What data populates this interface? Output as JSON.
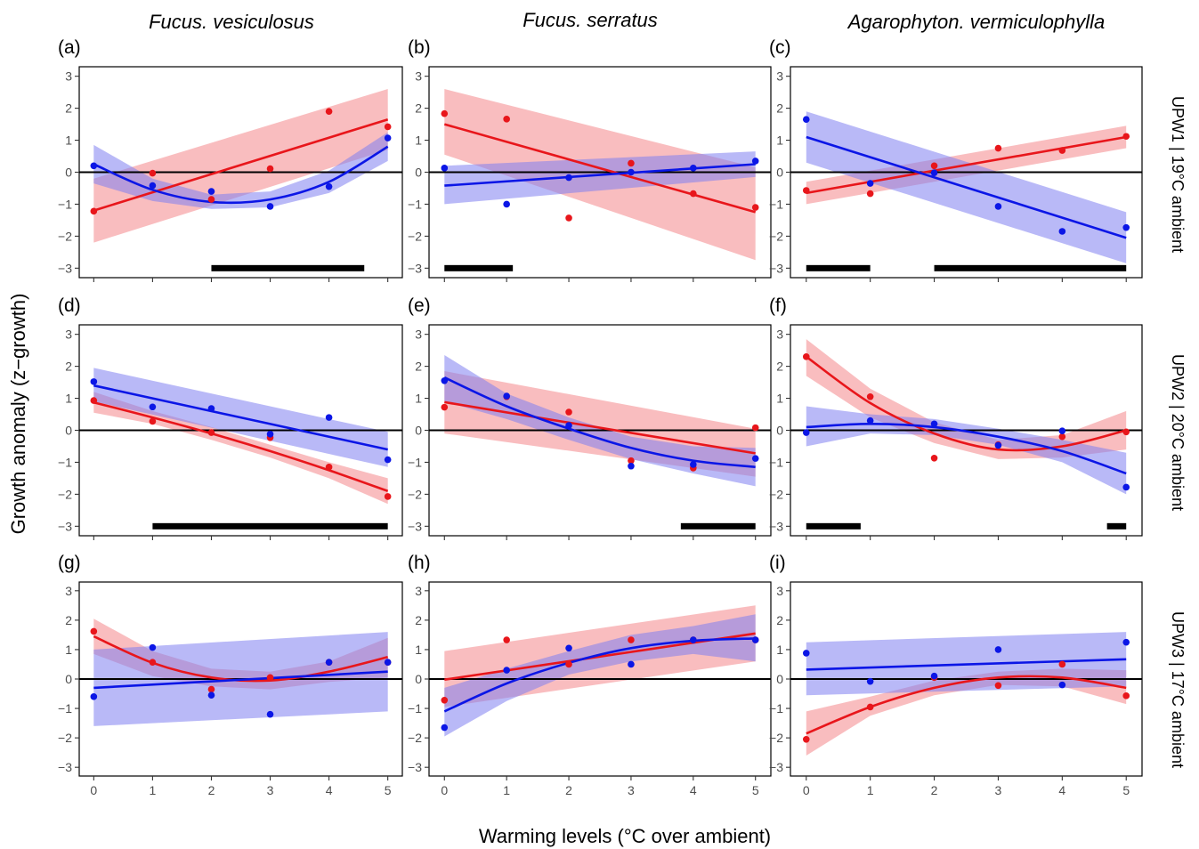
{
  "figure": {
    "ylabel": "Growth anomaly (z−growth)",
    "xlabel": "Warming levels (°C over ambient)",
    "species": [
      "Fucus. vesiculosus",
      "Fucus. serratus",
      "Agarophyton. vermiculophylla"
    ],
    "rows": [
      "UPW1 | 19°C ambient",
      "UPW2 | 20°C ambient",
      "UPW3 | 17°C ambient"
    ],
    "colors": {
      "red": "#e8161b",
      "blue": "#0b16e6",
      "red_band": "#f4868a",
      "blue_band": "#8080f0",
      "zero_line": "#000000",
      "bar": "#000000"
    }
  },
  "chart_data": [
    {
      "panel": "(a)",
      "type": "scatter",
      "xlim": [
        0,
        5
      ],
      "ylim": [
        -3,
        3
      ],
      "x_ticks": [
        0,
        1,
        2,
        3,
        4,
        5
      ],
      "y_ticks": [
        -3,
        -2,
        -1,
        0,
        1,
        2,
        3
      ],
      "series": [
        {
          "color": "red",
          "x": [
            0,
            1,
            2,
            3,
            4,
            5
          ],
          "y": [
            -1.22,
            -0.03,
            -0.85,
            0.11,
            1.9,
            1.42
          ],
          "fit": "linear",
          "fit_points": [
            [
              0,
              -1.2
            ],
            [
              5,
              1.65
            ]
          ],
          "band_lower": [
            -2.2,
            0.7
          ],
          "band_upper": [
            -0.2,
            2.6
          ]
        },
        {
          "color": "blue",
          "x": [
            0,
            1,
            2,
            3,
            4,
            5
          ],
          "y": [
            0.2,
            -0.42,
            -0.6,
            -1.07,
            -0.45,
            1.07
          ],
          "fit": "quadratic",
          "fit_points": [
            [
              0,
              0.25
            ],
            [
              1,
              -0.55
            ],
            [
              2,
              -0.93
            ],
            [
              3,
              -0.85
            ],
            [
              4,
              -0.3
            ],
            [
              5,
              0.8
            ]
          ],
          "band_lower": [
            -0.35,
            -0.9,
            -1.15,
            -1.1,
            -0.65,
            0.35
          ],
          "band_upper": [
            0.85,
            -0.2,
            -0.7,
            -0.6,
            0.05,
            1.25
          ]
        }
      ],
      "bars": [
        [
          2,
          4.6
        ]
      ]
    },
    {
      "panel": "(b)",
      "type": "scatter",
      "xlim": [
        0,
        5
      ],
      "ylim": [
        -3,
        3
      ],
      "x_ticks": [
        0,
        1,
        2,
        3,
        4,
        5
      ],
      "y_ticks": [
        -3,
        -2,
        -1,
        0,
        1,
        2,
        3
      ],
      "series": [
        {
          "color": "red",
          "x": [
            0,
            1,
            2,
            3,
            4,
            5
          ],
          "y": [
            1.83,
            1.66,
            -1.43,
            0.28,
            -0.67,
            -1.1
          ],
          "fit": "linear",
          "fit_points": [
            [
              0,
              1.5
            ],
            [
              5,
              -1.25
            ]
          ],
          "band_lower": [
            0.55,
            -2.75
          ],
          "band_upper": [
            2.6,
            0.15
          ]
        },
        {
          "color": "blue",
          "x": [
            0,
            1,
            2,
            3,
            4,
            5
          ],
          "y": [
            0.13,
            -1.0,
            -0.17,
            0.0,
            0.13,
            0.35
          ],
          "fit": "linear",
          "fit_points": [
            [
              0,
              -0.42
            ],
            [
              5,
              0.25
            ]
          ],
          "band_lower": [
            -1.0,
            -0.15
          ],
          "band_upper": [
            0.2,
            0.65
          ]
        }
      ],
      "bars": [
        [
          0,
          1.1
        ]
      ]
    },
    {
      "panel": "(c)",
      "type": "scatter",
      "xlim": [
        0,
        5
      ],
      "ylim": [
        -3,
        3
      ],
      "x_ticks": [
        0,
        1,
        2,
        3,
        4,
        5
      ],
      "y_ticks": [
        -3,
        -2,
        -1,
        0,
        1,
        2,
        3
      ],
      "series": [
        {
          "color": "red",
          "x": [
            0,
            1,
            2,
            3,
            4,
            5
          ],
          "y": [
            -0.57,
            -0.67,
            0.2,
            0.75,
            0.68,
            1.12
          ],
          "fit": "linear",
          "fit_points": [
            [
              0,
              -0.65
            ],
            [
              5,
              1.1
            ]
          ],
          "band_lower": [
            -1.0,
            0.75
          ],
          "band_upper": [
            -0.3,
            1.45
          ]
        },
        {
          "color": "blue",
          "x": [
            0,
            1,
            2,
            3,
            4,
            5
          ],
          "y": [
            1.65,
            -0.35,
            -0.02,
            -1.07,
            -1.85,
            -1.73
          ],
          "fit": "linear",
          "fit_points": [
            [
              0,
              1.1
            ],
            [
              5,
              -2.05
            ]
          ],
          "band_lower": [
            0.3,
            -2.85
          ],
          "band_upper": [
            1.9,
            -1.25
          ]
        }
      ],
      "bars": [
        [
          0,
          1.0
        ],
        [
          2,
          5
        ]
      ]
    },
    {
      "panel": "(d)",
      "type": "scatter",
      "xlim": [
        0,
        5
      ],
      "ylim": [
        -3,
        3
      ],
      "x_ticks": [
        0,
        1,
        2,
        3,
        4,
        5
      ],
      "y_ticks": [
        -3,
        -2,
        -1,
        0,
        1,
        2,
        3
      ],
      "series": [
        {
          "color": "red",
          "x": [
            0,
            1,
            2,
            3,
            4,
            5
          ],
          "y": [
            0.93,
            0.28,
            -0.07,
            -0.23,
            -1.15,
            -2.07
          ],
          "fit": "quadratic",
          "fit_points": [
            [
              0,
              0.87
            ],
            [
              1,
              0.4
            ],
            [
              2,
              -0.1
            ],
            [
              3,
              -0.65
            ],
            [
              4,
              -1.25
            ],
            [
              5,
              -1.9
            ]
          ],
          "band_lower": [
            0.55,
            0.2,
            -0.3,
            -0.85,
            -1.5,
            -2.3
          ],
          "band_upper": [
            1.2,
            0.6,
            0.1,
            -0.45,
            -1.0,
            -1.5
          ]
        },
        {
          "color": "blue",
          "x": [
            0,
            1,
            2,
            3,
            4,
            5
          ],
          "y": [
            1.52,
            0.73,
            0.68,
            -0.12,
            0.4,
            -0.92
          ],
          "fit": "linear",
          "fit_points": [
            [
              0,
              1.4
            ],
            [
              5,
              -0.6
            ]
          ],
          "band_lower": [
            0.9,
            -1.15
          ],
          "band_upper": [
            1.95,
            -0.05
          ]
        }
      ],
      "bars": [
        [
          1,
          5
        ]
      ]
    },
    {
      "panel": "(e)",
      "type": "scatter",
      "xlim": [
        0,
        5
      ],
      "ylim": [
        -3,
        3
      ],
      "x_ticks": [
        0,
        1,
        2,
        3,
        4,
        5
      ],
      "y_ticks": [
        -3,
        -2,
        -1,
        0,
        1,
        2,
        3
      ],
      "series": [
        {
          "color": "red",
          "x": [
            0,
            1,
            2,
            3,
            4,
            5
          ],
          "y": [
            0.72,
            1.05,
            0.57,
            -0.95,
            -1.18,
            0.08
          ],
          "fit": "linear",
          "fit_points": [
            [
              0,
              0.88
            ],
            [
              5,
              -0.72
            ]
          ],
          "band_lower": [
            -0.1,
            -1.45
          ],
          "band_upper": [
            1.85,
            0.05
          ]
        },
        {
          "color": "blue",
          "x": [
            0,
            1,
            2,
            3,
            4,
            5
          ],
          "y": [
            1.55,
            1.07,
            0.15,
            -1.12,
            -1.07,
            -0.88
          ],
          "fit": "quadratic",
          "fit_points": [
            [
              0,
              1.65
            ],
            [
              1,
              0.75
            ],
            [
              2,
              0.05
            ],
            [
              3,
              -0.55
            ],
            [
              4,
              -0.95
            ],
            [
              5,
              -1.15
            ]
          ],
          "band_lower": [
            0.9,
            0.35,
            -0.3,
            -0.9,
            -1.35,
            -1.75
          ],
          "band_upper": [
            2.35,
            1.15,
            0.4,
            -0.2,
            -0.5,
            -0.55
          ]
        }
      ],
      "bars": [
        [
          3.8,
          5
        ]
      ]
    },
    {
      "panel": "(f)",
      "type": "scatter",
      "xlim": [
        0,
        5
      ],
      "ylim": [
        -3,
        3
      ],
      "x_ticks": [
        0,
        1,
        2,
        3,
        4,
        5
      ],
      "y_ticks": [
        -3,
        -2,
        -1,
        0,
        1,
        2,
        3
      ],
      "series": [
        {
          "color": "red",
          "x": [
            0,
            1,
            2,
            3,
            4,
            5
          ],
          "y": [
            2.3,
            1.05,
            -0.87,
            -0.45,
            -0.2,
            -0.05
          ],
          "fit": "quadratic",
          "fit_points": [
            [
              0,
              2.3
            ],
            [
              1,
              0.85
            ],
            [
              2,
              -0.1
            ],
            [
              3,
              -0.6
            ],
            [
              4,
              -0.5
            ],
            [
              5,
              0.0
            ]
          ],
          "band_lower": [
            1.7,
            0.4,
            -0.4,
            -0.9,
            -0.85,
            -0.6
          ],
          "band_upper": [
            2.85,
            1.3,
            0.25,
            -0.3,
            -0.15,
            0.6
          ]
        },
        {
          "color": "blue",
          "x": [
            0,
            1,
            2,
            3,
            4,
            5
          ],
          "y": [
            -0.07,
            0.3,
            0.2,
            -0.47,
            -0.02,
            -1.78
          ],
          "fit": "quadratic",
          "fit_points": [
            [
              0,
              0.1
            ],
            [
              1,
              0.2
            ],
            [
              2,
              0.1
            ],
            [
              3,
              -0.2
            ],
            [
              4,
              -0.65
            ],
            [
              5,
              -1.35
            ]
          ],
          "band_lower": [
            -0.5,
            -0.1,
            -0.15,
            -0.45,
            -1.0,
            -2.0
          ],
          "band_upper": [
            0.75,
            0.5,
            0.35,
            0.05,
            -0.3,
            -0.7
          ]
        }
      ],
      "bars": [
        [
          0,
          0.85
        ],
        [
          4.7,
          5
        ]
      ]
    },
    {
      "panel": "(g)",
      "type": "scatter",
      "xlim": [
        0,
        5
      ],
      "ylim": [
        -3,
        3
      ],
      "x_ticks": [
        0,
        1,
        2,
        3,
        4,
        5
      ],
      "y_ticks": [
        -3,
        -2,
        -1,
        0,
        1,
        2,
        3
      ],
      "series": [
        {
          "color": "red",
          "x": [
            0,
            1,
            2,
            3,
            4,
            5
          ],
          "y": [
            1.62,
            0.57,
            -0.35,
            0.05,
            0.57,
            0.57
          ],
          "fit": "quadratic",
          "fit_points": [
            [
              0,
              1.45
            ],
            [
              1,
              0.55
            ],
            [
              2,
              0.05
            ],
            [
              3,
              -0.05
            ],
            [
              4,
              0.25
            ],
            [
              5,
              0.75
            ]
          ],
          "band_lower": [
            0.85,
            0.1,
            -0.25,
            -0.35,
            -0.1,
            0.05
          ],
          "band_upper": [
            2.05,
            0.95,
            0.35,
            0.25,
            0.6,
            1.4
          ]
        },
        {
          "color": "blue",
          "x": [
            0,
            1,
            2,
            3,
            4,
            5
          ],
          "y": [
            -0.6,
            1.07,
            -0.55,
            -1.2,
            0.57,
            0.57
          ],
          "fit": "linear",
          "fit_points": [
            [
              0,
              -0.3
            ],
            [
              5,
              0.25
            ]
          ],
          "band_lower": [
            -1.6,
            -1.1
          ],
          "band_upper": [
            1.0,
            1.6
          ]
        }
      ],
      "bars": []
    },
    {
      "panel": "(h)",
      "type": "scatter",
      "xlim": [
        0,
        5
      ],
      "ylim": [
        -3,
        3
      ],
      "x_ticks": [
        0,
        1,
        2,
        3,
        4,
        5
      ],
      "y_ticks": [
        -3,
        -2,
        -1,
        0,
        1,
        2,
        3
      ],
      "series": [
        {
          "color": "red",
          "x": [
            0,
            1,
            2,
            3,
            4,
            5
          ],
          "y": [
            -0.72,
            1.33,
            0.5,
            1.33,
            1.33,
            1.33
          ],
          "fit": "linear",
          "fit_points": [
            [
              0,
              -0.02
            ],
            [
              5,
              1.55
            ]
          ],
          "band_lower": [
            -0.95,
            0.6
          ],
          "band_upper": [
            0.95,
            2.5
          ]
        },
        {
          "color": "blue",
          "x": [
            0,
            1,
            2,
            3,
            4,
            5
          ],
          "y": [
            -1.65,
            0.3,
            1.05,
            0.5,
            1.33,
            1.33
          ],
          "fit": "quadratic",
          "fit_points": [
            [
              0,
              -1.1
            ],
            [
              1,
              -0.15
            ],
            [
              2,
              0.55
            ],
            [
              3,
              1.05
            ],
            [
              4,
              1.3
            ],
            [
              5,
              1.38
            ]
          ],
          "band_lower": [
            -1.95,
            -0.75,
            0.15,
            0.6,
            0.85,
            0.6
          ],
          "band_upper": [
            -0.3,
            0.35,
            0.95,
            1.5,
            1.8,
            2.2
          ]
        }
      ],
      "bars": []
    },
    {
      "panel": "(i)",
      "type": "scatter",
      "xlim": [
        0,
        5
      ],
      "ylim": [
        -3,
        3
      ],
      "x_ticks": [
        0,
        1,
        2,
        3,
        4,
        5
      ],
      "y_ticks": [
        -3,
        -2,
        -1,
        0,
        1,
        2,
        3
      ],
      "series": [
        {
          "color": "red",
          "x": [
            0,
            1,
            2,
            3,
            4,
            5
          ],
          "y": [
            -2.05,
            -0.95,
            0.05,
            -0.22,
            0.5,
            -0.57
          ],
          "fit": "quadratic",
          "fit_points": [
            [
              0,
              -1.85
            ],
            [
              1,
              -0.95
            ],
            [
              2,
              -0.3
            ],
            [
              3,
              0.05
            ],
            [
              4,
              0.05
            ],
            [
              5,
              -0.3
            ]
          ],
          "band_lower": [
            -2.6,
            -1.25,
            -0.55,
            -0.2,
            -0.25,
            -0.85
          ],
          "band_upper": [
            -1.1,
            -0.6,
            -0.05,
            0.25,
            0.35,
            0.3
          ]
        },
        {
          "color": "blue",
          "x": [
            0,
            1,
            2,
            3,
            4,
            5
          ],
          "y": [
            0.88,
            -0.08,
            0.1,
            1.0,
            -0.2,
            1.25
          ],
          "fit": "linear",
          "fit_points": [
            [
              0,
              0.32
            ],
            [
              5,
              0.67
            ]
          ],
          "band_lower": [
            -0.55,
            -0.25
          ],
          "band_upper": [
            1.25,
            1.6
          ]
        }
      ],
      "bars": []
    }
  ]
}
